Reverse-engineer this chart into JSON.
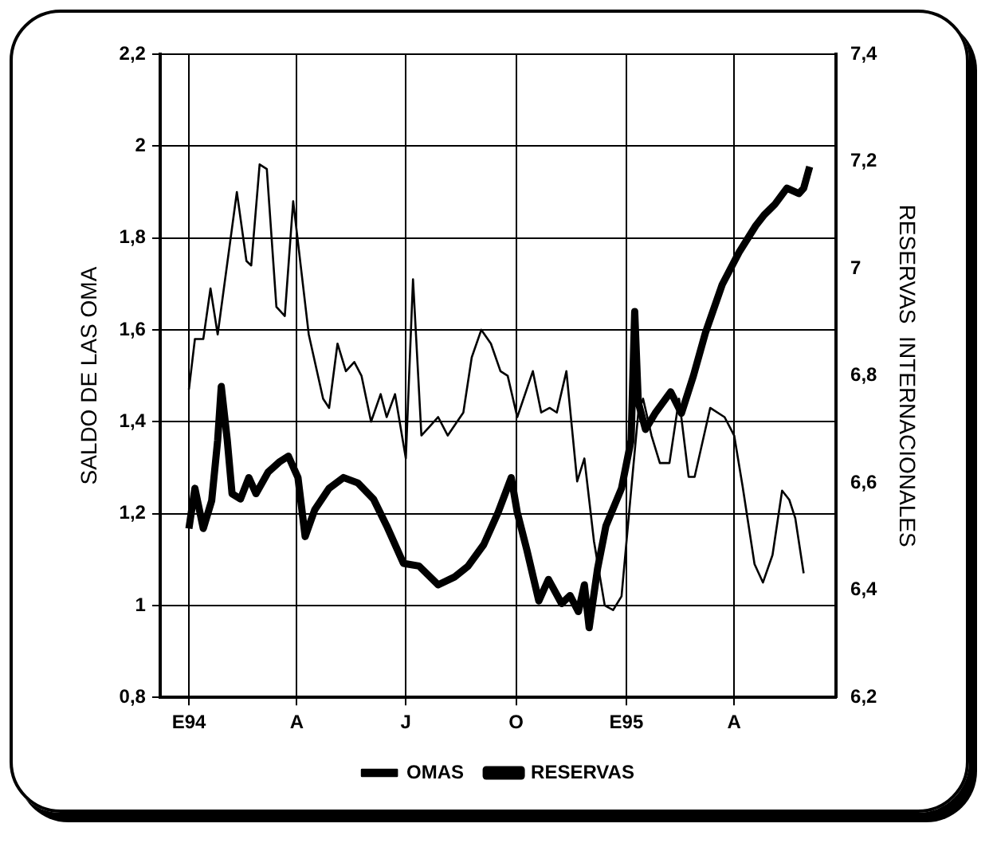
{
  "chart_data": {
    "type": "line",
    "ylabel": "SALDO DE LAS OMA",
    "y2label": "RESERVAS  INTERNACIONALES",
    "xlim": [
      "1993-12-08",
      "1995-06-25"
    ],
    "xticks": [
      {
        "value": "1994-01-01",
        "label": "E94"
      },
      {
        "value": "1994-04-01",
        "label": "A"
      },
      {
        "value": "1994-07-01",
        "label": "J"
      },
      {
        "value": "1994-10-01",
        "label": "O"
      },
      {
        "value": "1995-01-01",
        "label": "E95"
      },
      {
        "value": "1995-04-01",
        "label": "A"
      }
    ],
    "ylim": [
      0.8,
      2.2
    ],
    "yticks": [
      {
        "value": 0.8,
        "label": "0,8"
      },
      1,
      {
        "value": 1.2,
        "label": "1,2"
      },
      {
        "value": 1.4,
        "label": "1,4"
      },
      {
        "value": 1.6,
        "label": "1,6"
      },
      {
        "value": 1.8,
        "label": "1,8"
      },
      2,
      {
        "value": 2.2,
        "label": "2,2"
      }
    ],
    "y2lim": [
      6.2,
      7.4
    ],
    "y2ticks": [
      {
        "value": 6.2,
        "label": "6,2"
      },
      {
        "value": 6.4,
        "label": "6,4"
      },
      {
        "value": 6.6,
        "label": "6,6"
      },
      {
        "value": 6.8,
        "label": "6,8"
      },
      7,
      {
        "value": 7.2,
        "label": "7,2"
      },
      {
        "value": 7.4,
        "label": "7,4"
      }
    ],
    "grid": true,
    "legend": "bottom",
    "marker": "none",
    "series": [
      {
        "name": "OMAS",
        "color": "#000000",
        "axis": "y",
        "x": [
          "1994-01-01",
          "1994-01-06",
          "1994-01-13",
          "1994-01-19",
          "1994-01-25",
          "1994-02-10",
          "1994-02-18",
          "1994-02-22",
          "1994-03-01",
          "1994-03-07",
          "1994-03-15",
          "1994-03-22",
          "1994-03-29",
          "1994-04-11",
          "1994-04-23",
          "1994-04-28",
          "1994-05-05",
          "1994-05-12",
          "1994-05-19",
          "1994-05-25",
          "1994-06-02",
          "1994-06-10",
          "1994-06-15",
          "1994-06-22",
          "1994-07-01",
          "1994-07-07",
          "1994-07-14",
          "1994-07-21",
          "1994-07-28",
          "1994-08-05",
          "1994-08-18",
          "1994-08-25",
          "1994-09-02",
          "1994-09-10",
          "1994-09-18",
          "1994-09-24",
          "1994-10-02",
          "1994-10-15",
          "1994-10-22",
          "1994-10-29",
          "1994-11-04",
          "1994-11-12",
          "1994-11-21",
          "1994-11-27",
          "1994-12-05",
          "1994-12-14",
          "1994-12-21",
          "1994-12-28",
          "1995-01-05",
          "1995-01-11",
          "1995-01-15",
          "1995-01-22",
          "1995-01-29",
          "1995-02-06",
          "1995-02-14",
          "1995-02-22",
          "1995-02-27",
          "1995-03-12",
          "1995-03-24",
          "1995-04-01",
          "1995-04-08",
          "1995-04-18",
          "1995-04-25",
          "1995-05-03",
          "1995-05-11",
          "1995-05-17",
          "1995-05-22",
          "1995-05-29"
        ],
        "values": [
          1.47,
          1.58,
          1.58,
          1.69,
          1.59,
          1.9,
          1.75,
          1.74,
          1.96,
          1.95,
          1.65,
          1.63,
          1.88,
          1.59,
          1.45,
          1.43,
          1.57,
          1.51,
          1.53,
          1.5,
          1.4,
          1.46,
          1.41,
          1.46,
          1.32,
          1.71,
          1.37,
          1.39,
          1.41,
          1.37,
          1.42,
          1.54,
          1.6,
          1.57,
          1.51,
          1.5,
          1.41,
          1.51,
          1.42,
          1.43,
          1.42,
          1.51,
          1.27,
          1.32,
          1.14,
          1.0,
          0.99,
          1.02,
          1.25,
          1.42,
          1.45,
          1.37,
          1.31,
          1.31,
          1.45,
          1.28,
          1.28,
          1.43,
          1.41,
          1.37,
          1.26,
          1.09,
          1.05,
          1.11,
          1.25,
          1.23,
          1.19,
          1.07
        ]
      },
      {
        "name": "RESERVAS",
        "color": "#000000",
        "axis": "y2",
        "x": [
          "1994-01-01",
          "1994-01-06",
          "1994-01-13",
          "1994-01-20",
          "1994-01-25",
          "1994-01-28",
          "1994-02-02",
          "1994-02-06",
          "1994-02-13",
          "1994-02-20",
          "1994-02-26",
          "1994-03-08",
          "1994-03-18",
          "1994-03-25",
          "1994-04-02",
          "1994-04-08",
          "1994-04-16",
          "1994-04-28",
          "1994-05-10",
          "1994-05-22",
          "1994-06-04",
          "1994-06-15",
          "1994-06-29",
          "1994-07-12",
          "1994-07-28",
          "1994-08-11",
          "1994-08-22",
          "1994-09-04",
          "1994-09-16",
          "1994-09-27",
          "1994-10-02",
          "1994-10-10",
          "1994-10-20",
          "1994-10-28",
          "1994-11-08",
          "1994-11-15",
          "1994-11-22",
          "1994-11-27",
          "1994-12-01",
          "1994-12-08",
          "1994-12-15",
          "1994-12-28",
          "1995-01-05",
          "1995-01-08",
          "1995-01-11",
          "1995-01-17",
          "1995-01-25",
          "1995-02-07",
          "1995-02-16",
          "1995-02-26",
          "1995-03-08",
          "1995-03-22",
          "1995-04-05",
          "1995-04-19",
          "1995-04-26",
          "1995-05-05",
          "1995-05-15",
          "1995-05-25",
          "1995-05-29",
          "1995-06-03"
        ],
        "values": [
          6.515,
          6.59,
          6.515,
          6.567,
          6.68,
          6.78,
          6.68,
          6.58,
          6.57,
          6.61,
          6.58,
          6.62,
          6.64,
          6.65,
          6.61,
          6.5,
          6.55,
          6.59,
          6.61,
          6.6,
          6.57,
          6.52,
          6.45,
          6.445,
          6.41,
          6.425,
          6.445,
          6.485,
          6.545,
          6.61,
          6.545,
          6.475,
          6.38,
          6.42,
          6.375,
          6.39,
          6.36,
          6.41,
          6.33,
          6.44,
          6.52,
          6.59,
          6.68,
          6.92,
          6.75,
          6.7,
          6.73,
          6.77,
          6.73,
          6.8,
          6.88,
          6.97,
          7.03,
          7.08,
          7.1,
          7.12,
          7.15,
          7.14,
          7.15,
          7.19
        ]
      }
    ]
  }
}
